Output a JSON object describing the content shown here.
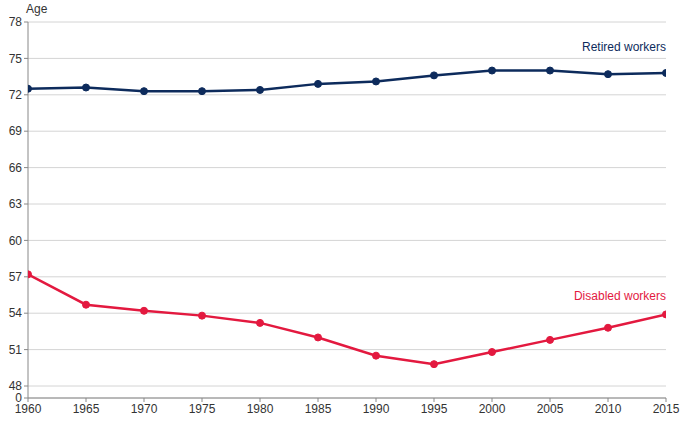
{
  "chart_data": {
    "type": "line",
    "y_label": "Age",
    "x": [
      1960,
      1965,
      1970,
      1975,
      1980,
      1985,
      1990,
      1995,
      2000,
      2005,
      2010,
      2015
    ],
    "xlim": [
      1960,
      2015
    ],
    "xticks": [
      1960,
      1965,
      1970,
      1975,
      1980,
      1985,
      1990,
      1995,
      2000,
      2005,
      2010,
      2015
    ],
    "ylim": [
      0,
      78
    ],
    "yticks": [
      0,
      48,
      51,
      54,
      57,
      60,
      63,
      66,
      69,
      72,
      75,
      78
    ],
    "grid": true,
    "series": [
      {
        "name": "Retired workers",
        "color": "#0d2b5c",
        "marker": "circle",
        "values": [
          72.5,
          72.6,
          72.3,
          72.3,
          72.4,
          72.9,
          73.1,
          73.6,
          74.0,
          74.0,
          73.7,
          73.8
        ]
      },
      {
        "name": "Disabled workers",
        "color": "#e3193f",
        "marker": "circle",
        "values": [
          57.2,
          54.7,
          54.2,
          53.8,
          53.2,
          52.0,
          50.5,
          49.8,
          50.8,
          51.8,
          52.8,
          53.9
        ]
      }
    ]
  }
}
